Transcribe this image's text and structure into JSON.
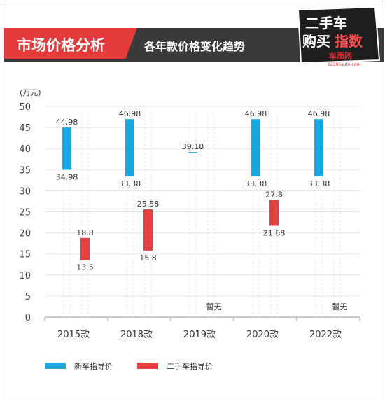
{
  "header": {
    "tag_title": "市场价格分析",
    "subtitle": "各年款价格变化趋势",
    "logo_line1": "二手车",
    "logo_line2a": "购买",
    "logo_line2b": "指数",
    "logo_brand": "车质网",
    "logo_url": "12365auto.com"
  },
  "colors": {
    "new_car": "#19a7e2",
    "used_car": "#e64141",
    "header_dark": "#3a3a3a",
    "header_red": "#e63b3b"
  },
  "chart_data": {
    "type": "bar",
    "unit_label": "(万元)",
    "ylim": [
      0,
      50
    ],
    "yticks": [
      0,
      5,
      10,
      15,
      20,
      25,
      30,
      35,
      40,
      45,
      50
    ],
    "categories": [
      "2015款",
      "2018款",
      "2019款",
      "2020款",
      "2022款"
    ],
    "series": [
      {
        "name": "新车指导价",
        "color": "#19a7e2",
        "ranges": [
          [
            34.98,
            44.98
          ],
          [
            33.38,
            46.98
          ],
          [
            39.18,
            39.18
          ],
          [
            33.38,
            46.98
          ],
          [
            33.38,
            46.98
          ]
        ]
      },
      {
        "name": "二手车指导价",
        "color": "#e64141",
        "ranges": [
          [
            13.5,
            18.8
          ],
          [
            15.8,
            25.58
          ],
          null,
          [
            21.68,
            27.8
          ],
          null
        ]
      }
    ],
    "no_data_label": "暂无",
    "no_data_categories": [
      "2019款",
      "2022款"
    ]
  }
}
